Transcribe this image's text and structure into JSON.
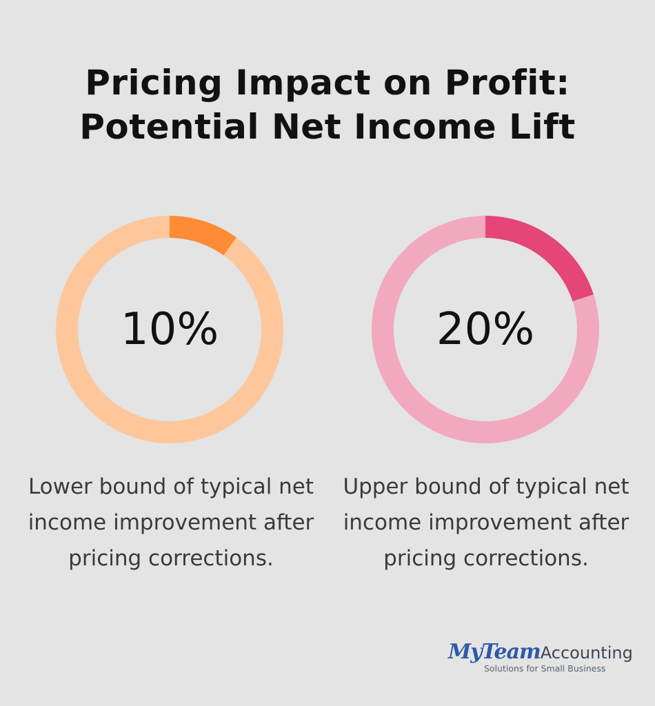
{
  "title": {
    "line1": "Pricing Impact on Profit:",
    "line2": "Potential Net Income Lift"
  },
  "chart_data": [
    {
      "type": "pie",
      "value": 10,
      "label": "10%",
      "caption": "Lower bound of typical net income improvement after pricing corrections.",
      "colors": {
        "track": "#fec79b",
        "fill": "#fe8b35"
      }
    },
    {
      "type": "pie",
      "value": 20,
      "label": "20%",
      "caption": "Upper bound of typical net income improvement after pricing corrections.",
      "colors": {
        "track": "#f2a9bf",
        "fill": "#e34677"
      }
    }
  ],
  "captions": [
    "Lower bound of typical net income improvement after pricing corrections.",
    "Upper bound of typical net income improvement after pricing corrections."
  ],
  "logo": {
    "brand": "MyTeam",
    "word": "Accounting",
    "tagline": "Solutions for Small Business"
  }
}
